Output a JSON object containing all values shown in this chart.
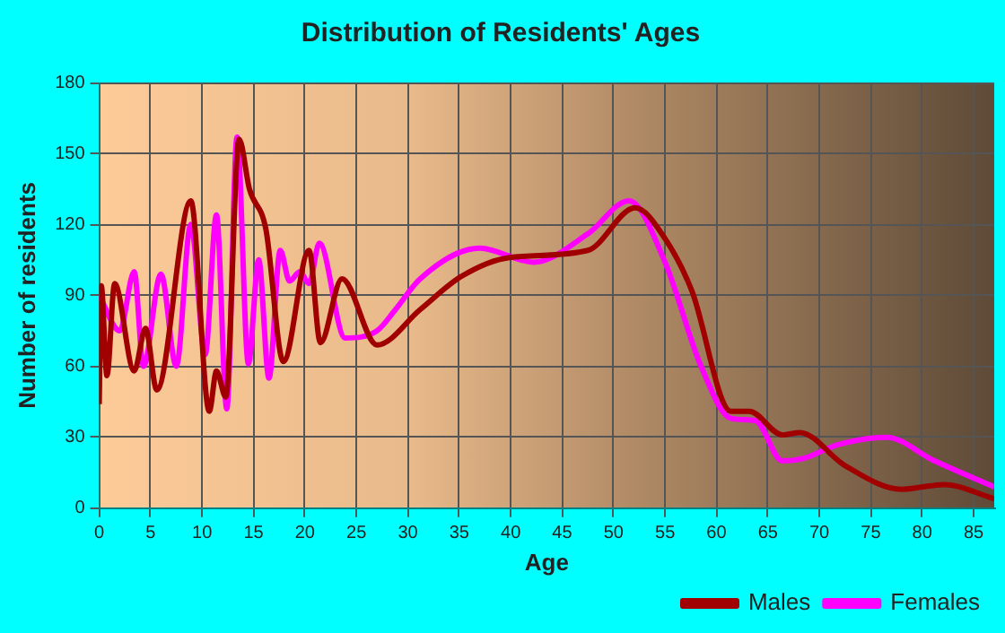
{
  "chart_data": {
    "type": "line",
    "title": "Distribution of Residents' Ages",
    "xlabel": "Age",
    "ylabel": "Number of residents",
    "xlim": [
      0,
      87
    ],
    "xticks": [
      0,
      5,
      10,
      15,
      20,
      25,
      30,
      35,
      40,
      45,
      50,
      55,
      60,
      65,
      70,
      75,
      80,
      85
    ],
    "ylim": [
      0,
      180
    ],
    "yticks": [
      0,
      30,
      60,
      90,
      120,
      150,
      180
    ],
    "grid": true,
    "legend": "bottom",
    "marker": "none",
    "line_style": "solid",
    "series": [
      {
        "name": "Males",
        "color": "#a00000",
        "x": [
          0,
          0.2,
          0.75,
          1.5,
          3.4,
          4.5,
          5.6,
          8.9,
          10.7,
          11.4,
          12.3,
          13.6,
          14.6,
          16.2,
          17.9,
          20.4,
          21.5,
          23.6,
          27,
          31.2,
          35.2,
          39.9,
          47.5,
          52.1,
          55,
          57.6,
          61.4,
          63.2,
          66.4,
          68.1,
          72.5,
          78,
          82.1,
          87
        ],
        "values": [
          44,
          94,
          56,
          95,
          58,
          76,
          50,
          130,
          41,
          58,
          47,
          156,
          135,
          118,
          62,
          109,
          70,
          97,
          69,
          84,
          98,
          106,
          109,
          127,
          114,
          92,
          41,
          41,
          31,
          32,
          18,
          8,
          10,
          4
        ]
      },
      {
        "name": "Females",
        "color": "#ff00ff",
        "x": [
          0,
          2,
          3.4,
          4.3,
          6,
          7.5,
          8.9,
          10.3,
          11.4,
          12.4,
          13.4,
          14.5,
          15.5,
          16.5,
          17.6,
          18.5,
          19.5,
          20.4,
          21.4,
          23.9,
          27,
          28.8,
          31.2,
          37,
          42.2,
          47.5,
          51.5,
          55,
          58.5,
          61.4,
          63.8,
          66.4,
          68.4,
          71.9,
          76.5,
          81.2,
          87
        ],
        "values": [
          90,
          75,
          100,
          60,
          99,
          60,
          120,
          65,
          124,
          42,
          157,
          61,
          105,
          55,
          109,
          96,
          100,
          95,
          112,
          72,
          75,
          84,
          97,
          110,
          104,
          116,
          130,
          104,
          60,
          38,
          37,
          20,
          21,
          27,
          30,
          20,
          9
        ]
      }
    ]
  }
}
